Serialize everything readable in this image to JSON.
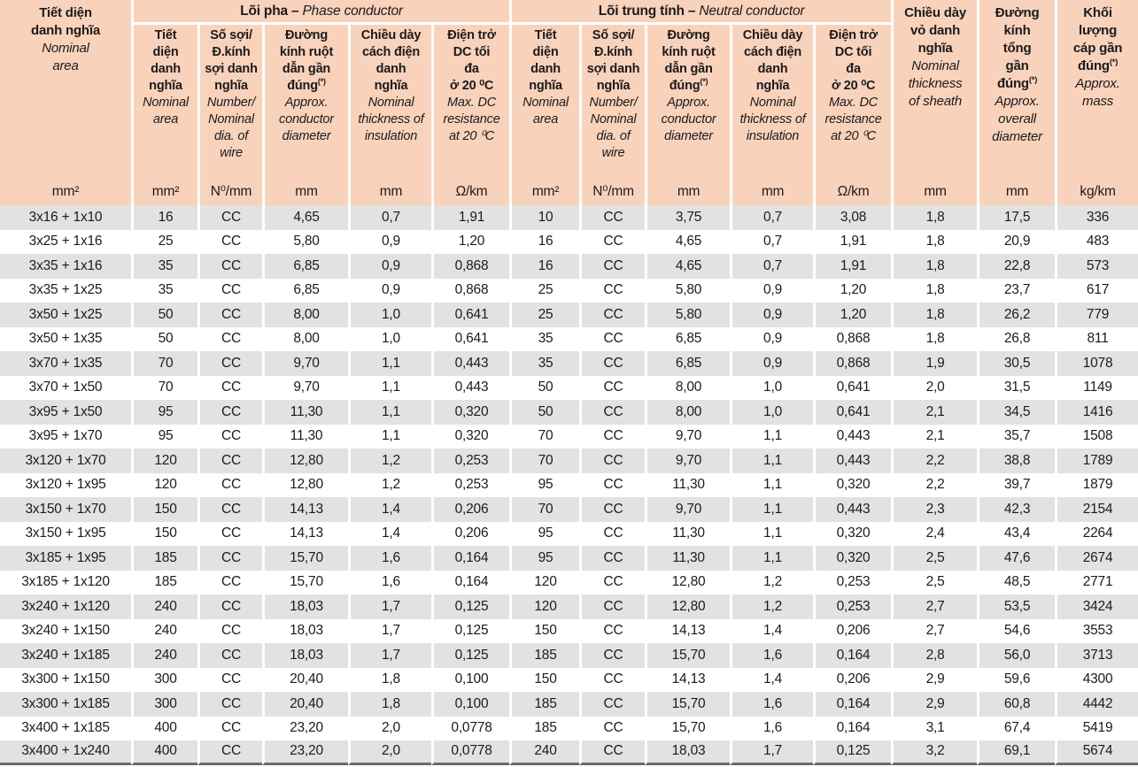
{
  "table": {
    "corner": {
      "vn": "Tiết diện\ndanh nghĩa",
      "en": "Nominal\narea"
    },
    "groups": {
      "phase": {
        "vn": "Lõi pha –",
        "en": "Phase conductor"
      },
      "neutral": {
        "vn": "Lõi trung tính –",
        "en": "Neutral conductor"
      }
    },
    "phase_columns": [
      {
        "vn": "Tiết\ndiện\ndanh\nnghĩa",
        "en": "Nominal\narea"
      },
      {
        "vn": "Số sợi/\nĐ.kính\nsợi danh\nnghĩa",
        "en": "Number/\nNominal\ndia. of\nwire"
      },
      {
        "vn": "Đường\nkính ruột\ndẫn gần\nđúng(*)",
        "en": "Approx.\nconductor\ndiameter"
      },
      {
        "vn": "Chiều dày\ncách điện\ndanh\nnghĩa",
        "en": "Nominal\nthickness of\ninsulation"
      },
      {
        "vn": "Điện trở\nDC tối\nđa\nở 20 ⁰C",
        "en": "Max. DC\nresistance\nat 20 ⁰C"
      }
    ],
    "neutral_columns": [
      {
        "vn": "Tiết\ndiện\ndanh\nnghĩa",
        "en": "Nominal\narea"
      },
      {
        "vn": "Số sợi/\nĐ.kính\nsợi danh\nnghĩa",
        "en": "Number/\nNominal\ndia. of\nwire"
      },
      {
        "vn": "Đường\nkính ruột\ndẫn gần\nđúng(*)",
        "en": "Approx.\nconductor\ndiameter"
      },
      {
        "vn": "Chiều dày\ncách điện\ndanh\nnghĩa",
        "en": "Nominal\nthickness of\ninsulation"
      },
      {
        "vn": "Điện trở\nDC tối\nđa\nở 20 ⁰C",
        "en": "Max. DC\nresistance\nat 20 ⁰C"
      }
    ],
    "tail_columns": {
      "sheath": {
        "vn": "Chiều dày\nvỏ danh\nnghĩa",
        "en": "Nominal\nthickness\nof sheath"
      },
      "overall": {
        "vn": "Đường\nkính\ntổng\ngần\nđúng(*)",
        "en": "Approx.\noverall\ndiameter"
      },
      "mass": {
        "vn": "Khối\nlượng\ncáp gần\nđúng(*)",
        "en": "Approx.\nmass"
      }
    },
    "units": [
      "mm²",
      "mm²",
      "N⁰/mm",
      "mm",
      "mm",
      "Ω/km",
      "mm²",
      "N⁰/mm",
      "mm",
      "mm",
      "Ω/km",
      "mm",
      "mm",
      "kg/km"
    ],
    "rows": [
      [
        "3x16 + 1x10",
        "16",
        "CC",
        "4,65",
        "0,7",
        "1,91",
        "10",
        "CC",
        "3,75",
        "0,7",
        "3,08",
        "1,8",
        "17,5",
        "336"
      ],
      [
        "3x25 + 1x16",
        "25",
        "CC",
        "5,80",
        "0,9",
        "1,20",
        "16",
        "CC",
        "4,65",
        "0,7",
        "1,91",
        "1,8",
        "20,9",
        "483"
      ],
      [
        "3x35 + 1x16",
        "35",
        "CC",
        "6,85",
        "0,9",
        "0,868",
        "16",
        "CC",
        "4,65",
        "0,7",
        "1,91",
        "1,8",
        "22,8",
        "573"
      ],
      [
        "3x35 + 1x25",
        "35",
        "CC",
        "6,85",
        "0,9",
        "0,868",
        "25",
        "CC",
        "5,80",
        "0,9",
        "1,20",
        "1,8",
        "23,7",
        "617"
      ],
      [
        "3x50 + 1x25",
        "50",
        "CC",
        "8,00",
        "1,0",
        "0,641",
        "25",
        "CC",
        "5,80",
        "0,9",
        "1,20",
        "1,8",
        "26,2",
        "779"
      ],
      [
        "3x50 + 1x35",
        "50",
        "CC",
        "8,00",
        "1,0",
        "0,641",
        "35",
        "CC",
        "6,85",
        "0,9",
        "0,868",
        "1,8",
        "26,8",
        "811"
      ],
      [
        "3x70 + 1x35",
        "70",
        "CC",
        "9,70",
        "1,1",
        "0,443",
        "35",
        "CC",
        "6,85",
        "0,9",
        "0,868",
        "1,9",
        "30,5",
        "1078"
      ],
      [
        "3x70 + 1x50",
        "70",
        "CC",
        "9,70",
        "1,1",
        "0,443",
        "50",
        "CC",
        "8,00",
        "1,0",
        "0,641",
        "2,0",
        "31,5",
        "1149"
      ],
      [
        "3x95 + 1x50",
        "95",
        "CC",
        "11,30",
        "1,1",
        "0,320",
        "50",
        "CC",
        "8,00",
        "1,0",
        "0,641",
        "2,1",
        "34,5",
        "1416"
      ],
      [
        "3x95 + 1x70",
        "95",
        "CC",
        "11,30",
        "1,1",
        "0,320",
        "70",
        "CC",
        "9,70",
        "1,1",
        "0,443",
        "2,1",
        "35,7",
        "1508"
      ],
      [
        "3x120 + 1x70",
        "120",
        "CC",
        "12,80",
        "1,2",
        "0,253",
        "70",
        "CC",
        "9,70",
        "1,1",
        "0,443",
        "2,2",
        "38,8",
        "1789"
      ],
      [
        "3x120 + 1x95",
        "120",
        "CC",
        "12,80",
        "1,2",
        "0,253",
        "95",
        "CC",
        "11,30",
        "1,1",
        "0,320",
        "2,2",
        "39,7",
        "1879"
      ],
      [
        "3x150 + 1x70",
        "150",
        "CC",
        "14,13",
        "1,4",
        "0,206",
        "70",
        "CC",
        "9,70",
        "1,1",
        "0,443",
        "2,3",
        "42,3",
        "2154"
      ],
      [
        "3x150 + 1x95",
        "150",
        "CC",
        "14,13",
        "1,4",
        "0,206",
        "95",
        "CC",
        "11,30",
        "1,1",
        "0,320",
        "2,4",
        "43,4",
        "2264"
      ],
      [
        "3x185 + 1x95",
        "185",
        "CC",
        "15,70",
        "1,6",
        "0,164",
        "95",
        "CC",
        "11,30",
        "1,1",
        "0,320",
        "2,5",
        "47,6",
        "2674"
      ],
      [
        "3x185 + 1x120",
        "185",
        "CC",
        "15,70",
        "1,6",
        "0,164",
        "120",
        "CC",
        "12,80",
        "1,2",
        "0,253",
        "2,5",
        "48,5",
        "2771"
      ],
      [
        "3x240 + 1x120",
        "240",
        "CC",
        "18,03",
        "1,7",
        "0,125",
        "120",
        "CC",
        "12,80",
        "1,2",
        "0,253",
        "2,7",
        "53,5",
        "3424"
      ],
      [
        "3x240 + 1x150",
        "240",
        "CC",
        "18,03",
        "1,7",
        "0,125",
        "150",
        "CC",
        "14,13",
        "1,4",
        "0,206",
        "2,7",
        "54,6",
        "3553"
      ],
      [
        "3x240 + 1x185",
        "240",
        "CC",
        "18,03",
        "1,7",
        "0,125",
        "185",
        "CC",
        "15,70",
        "1,6",
        "0,164",
        "2,8",
        "56,0",
        "3713"
      ],
      [
        "3x300 + 1x150",
        "300",
        "CC",
        "20,40",
        "1,8",
        "0,100",
        "150",
        "CC",
        "14,13",
        "1,4",
        "0,206",
        "2,9",
        "59,6",
        "4300"
      ],
      [
        "3x300 + 1x185",
        "300",
        "CC",
        "20,40",
        "1,8",
        "0,100",
        "185",
        "CC",
        "15,70",
        "1,6",
        "0,164",
        "2,9",
        "60,8",
        "4442"
      ],
      [
        "3x400 + 1x185",
        "400",
        "CC",
        "23,20",
        "2,0",
        "0,0778",
        "185",
        "CC",
        "15,70",
        "1,6",
        "0,164",
        "3,1",
        "67,4",
        "5419"
      ],
      [
        "3x400 + 1x240",
        "400",
        "CC",
        "23,20",
        "2,0",
        "0,0778",
        "240",
        "CC",
        "18,03",
        "1,7",
        "0,125",
        "3,2",
        "69,1",
        "5674"
      ]
    ]
  }
}
